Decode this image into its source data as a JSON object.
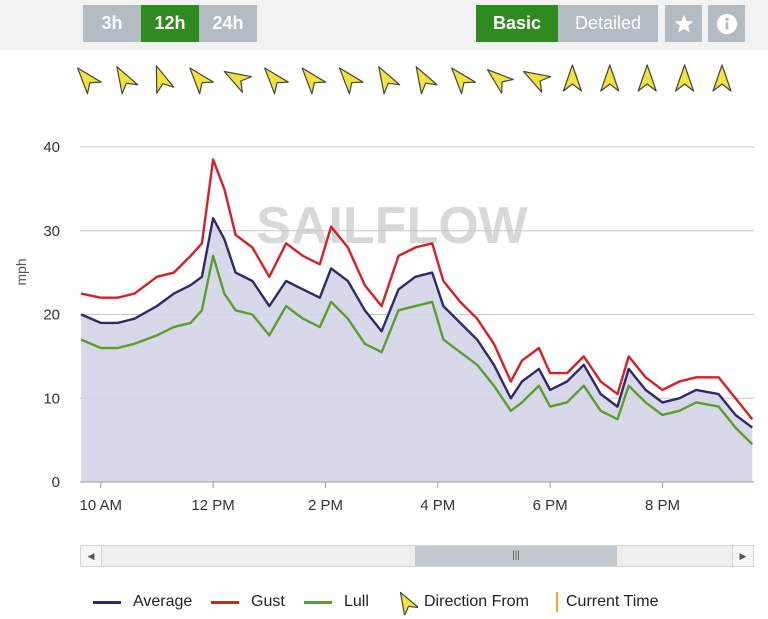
{
  "toolbar": {
    "ranges": [
      "3h",
      "12h",
      "24h"
    ],
    "active_range": "12h",
    "views": [
      "Basic",
      "Detailed"
    ],
    "active_view": "Basic",
    "star_icon": "star-icon",
    "info_icon": "info-icon",
    "active_color": "#2f8a1f",
    "inactive_color": "#b3bbc3"
  },
  "direction_arrows": {
    "icon": "wind-direction-arrow-icon",
    "color": "#f2e23a",
    "rotations_deg": [
      -40,
      -30,
      -20,
      -40,
      -60,
      -40,
      -40,
      -40,
      -30,
      -30,
      -40,
      -50,
      -60,
      0,
      0,
      0,
      0,
      0
    ]
  },
  "watermark": "SAILFLOW",
  "legend": {
    "average": "Average",
    "gust": "Gust",
    "lull": "Lull",
    "direction": "Direction From",
    "current_time": "Current Time"
  },
  "chart_data": {
    "type": "line",
    "ylabel": "mph",
    "ylim": [
      0,
      40
    ],
    "yticks": [
      0,
      10,
      20,
      30,
      40
    ],
    "xlim": [
      9.63,
      21.63
    ],
    "xticks": [
      {
        "value": 10,
        "label": "10 AM"
      },
      {
        "value": 12,
        "label": "12 PM"
      },
      {
        "value": 14,
        "label": "2 PM"
      },
      {
        "value": 16,
        "label": "4 PM"
      },
      {
        "value": 18,
        "label": "6 PM"
      },
      {
        "value": 20,
        "label": "8 PM"
      }
    ],
    "grid": true,
    "legend_position": "bottom",
    "x": [
      9.65,
      10.0,
      10.3,
      10.6,
      11.0,
      11.3,
      11.6,
      11.8,
      12.0,
      12.2,
      12.4,
      12.7,
      13.0,
      13.3,
      13.6,
      13.9,
      14.1,
      14.4,
      14.7,
      15.0,
      15.3,
      15.6,
      15.9,
      16.1,
      16.4,
      16.7,
      17.0,
      17.3,
      17.5,
      17.8,
      18.0,
      18.3,
      18.6,
      18.9,
      19.2,
      19.4,
      19.7,
      20.0,
      20.3,
      20.6,
      21.0,
      21.3,
      21.6
    ],
    "series": [
      {
        "name": "Average",
        "color": "#2e2a6b",
        "values": [
          20,
          19,
          19,
          19.5,
          21,
          22.5,
          23.5,
          24.5,
          31.5,
          29,
          25,
          24,
          21,
          24,
          23,
          22,
          25.5,
          24,
          20.5,
          18,
          23,
          24.5,
          25,
          21,
          19,
          17,
          14,
          10,
          12,
          13.5,
          11,
          12,
          14,
          10.5,
          9,
          13.5,
          11,
          9.5,
          10,
          11,
          10.5,
          8,
          6.5
        ]
      },
      {
        "name": "Gust",
        "color": "#d62025",
        "values": [
          22.5,
          22,
          22,
          22.5,
          24.5,
          25,
          27,
          28.5,
          38.5,
          35,
          29.5,
          28,
          24.5,
          28.5,
          27,
          26,
          30.5,
          28,
          23.5,
          21,
          27,
          28,
          28.5,
          24,
          21.5,
          19.5,
          16.5,
          12,
          14.5,
          16,
          13,
          13,
          15,
          12,
          10.5,
          15,
          12.5,
          11,
          12,
          12.5,
          12.5,
          10,
          7.5
        ]
      },
      {
        "name": "Lull",
        "color": "#5b9e2b",
        "values": [
          17,
          16,
          16,
          16.5,
          17.5,
          18.5,
          19,
          20.5,
          27,
          22.5,
          20.5,
          20,
          17.5,
          21,
          19.5,
          18.5,
          21.5,
          19.5,
          16.5,
          15.5,
          20.5,
          21,
          21.5,
          17,
          15.5,
          14,
          11.5,
          8.5,
          9.5,
          11.5,
          9,
          9.5,
          11.5,
          8.5,
          7.5,
          11.5,
          9.5,
          8,
          8.5,
          9.5,
          9,
          6.5,
          4.5
        ]
      }
    ]
  }
}
